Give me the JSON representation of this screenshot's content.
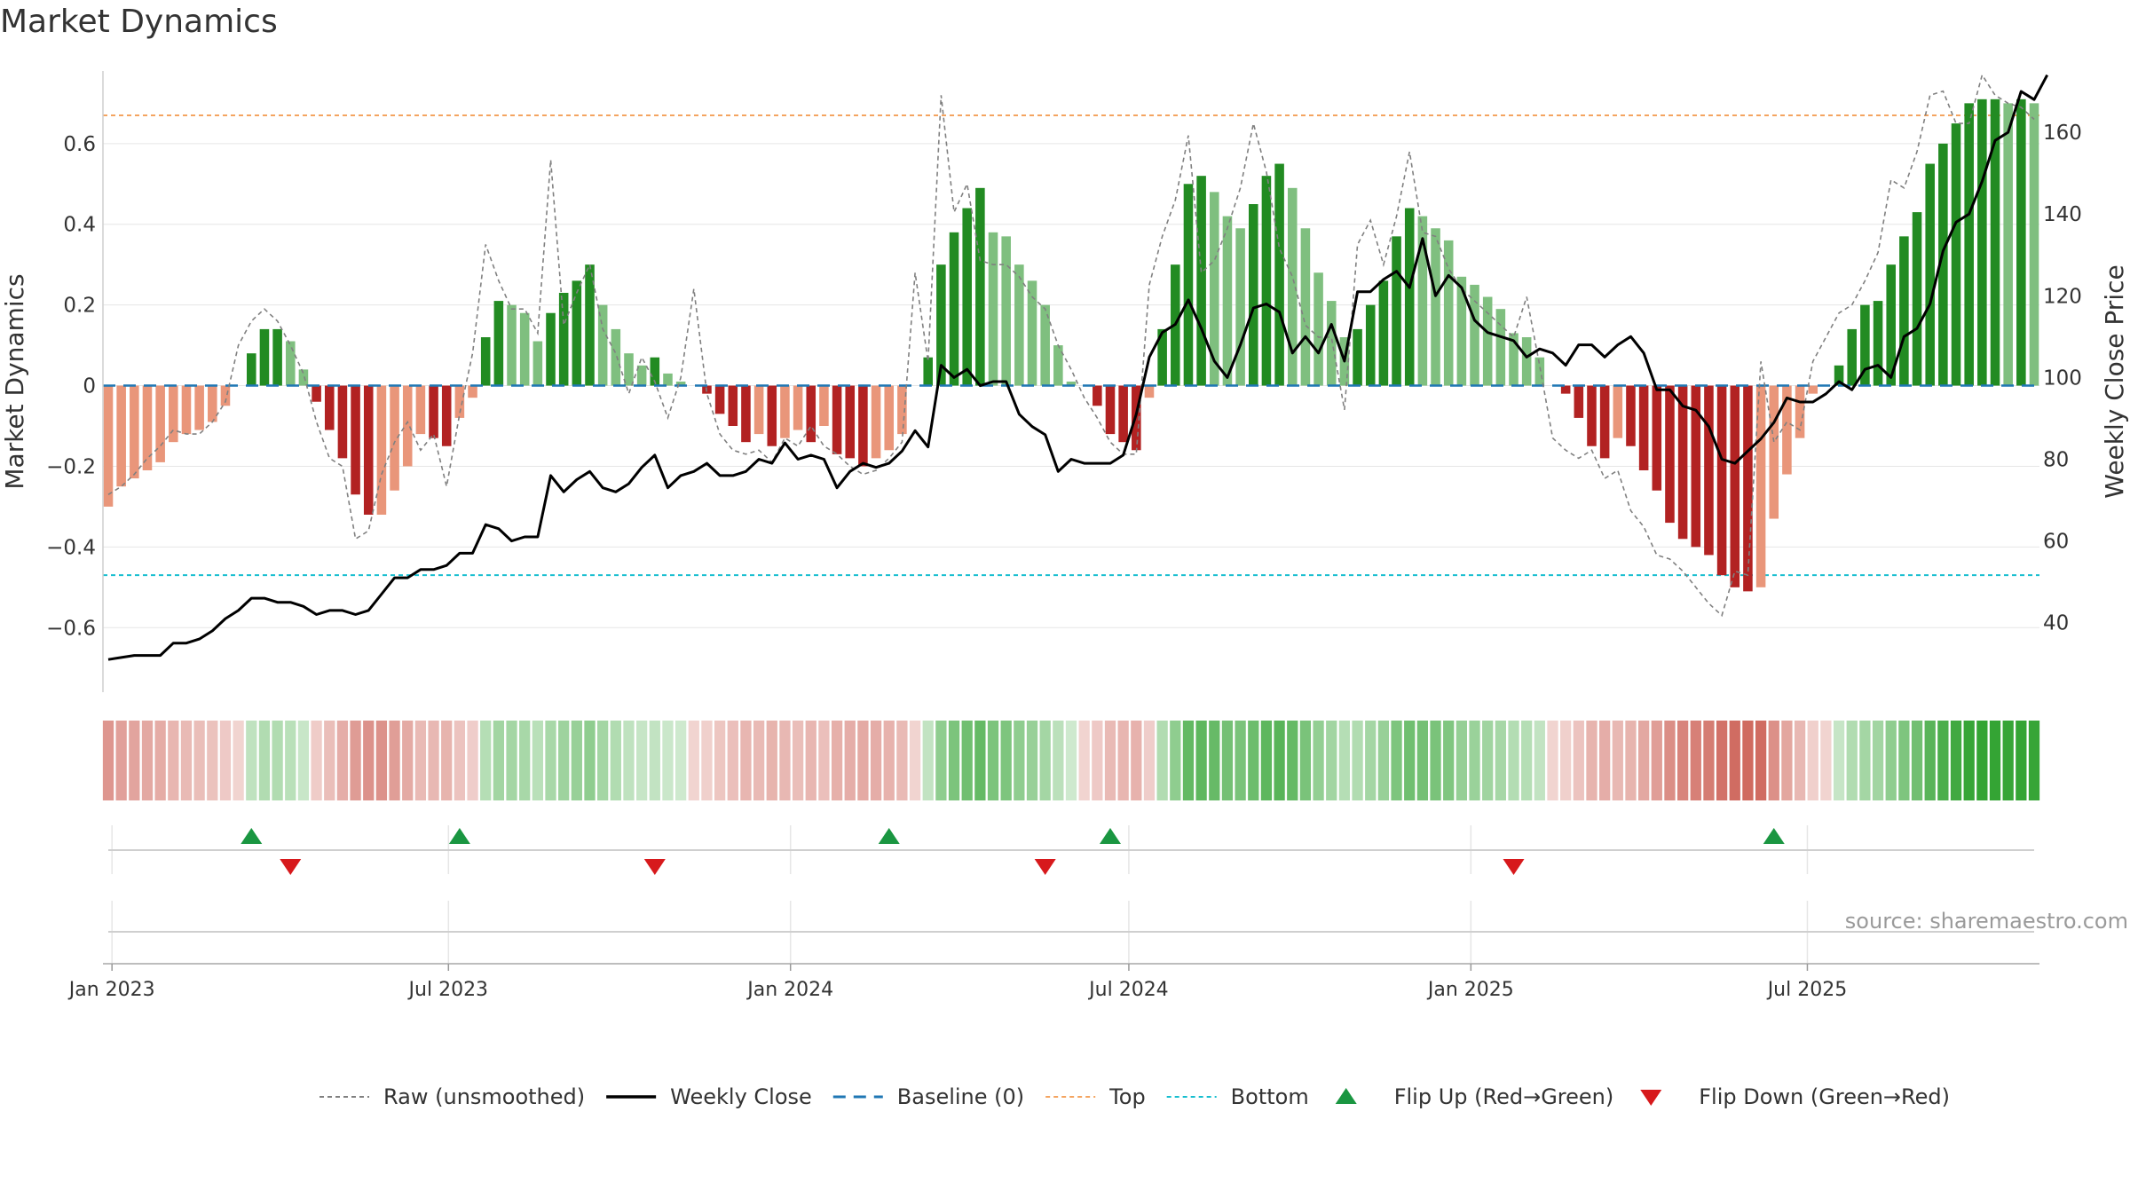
{
  "title": "Market Dynamics",
  "source": "source: sharemaestro.com",
  "colors": {
    "strong_green": "#228b22",
    "light_green": "#7fbf7f",
    "strong_red": "#b22222",
    "light_red": "#e9967a",
    "top_line": "#f4a460",
    "bottom_line": "#17becf",
    "baseline": "#1f77b4",
    "raw": "#808080",
    "close": "#000000",
    "flip_up": "#1a9641",
    "flip_down": "#d7191c"
  },
  "legend": [
    {
      "label": "Raw (unsmoothed)",
      "kind": "raw"
    },
    {
      "label": "Weekly Close",
      "kind": "close"
    },
    {
      "label": "Baseline (0)",
      "kind": "baseline"
    },
    {
      "label": "Top",
      "kind": "top"
    },
    {
      "label": "Bottom",
      "kind": "bottom"
    },
    {
      "label": "Flip Up (Red→Green)",
      "kind": "flip_up"
    },
    {
      "label": "Flip Down (Green→Red)",
      "kind": "flip_down"
    }
  ],
  "chart_data": {
    "type": "bar",
    "title": "Market Dynamics",
    "ylabel_left": "Market Dynamics",
    "ylabel_right": "Weekly Close Price",
    "ylim_left": [
      -0.76,
      0.78
    ],
    "ylim_right": [
      23,
      175
    ],
    "yticks_left": [
      "0.6",
      "0.4",
      "0.2",
      "0",
      "−0.2",
      "−0.4",
      "−0.6"
    ],
    "yticks_left_values": [
      0.6,
      0.4,
      0.2,
      0,
      -0.2,
      -0.4,
      -0.6
    ],
    "yticks_right": [
      "160",
      "140",
      "120",
      "100",
      "80",
      "60",
      "40"
    ],
    "yticks_right_values": [
      160,
      140,
      120,
      100,
      80,
      60,
      40
    ],
    "x_start": "2022-12-30",
    "x_step_days": 7,
    "xticks": [
      "Jan 2023",
      "Jul 2023",
      "Jan 2024",
      "Jul 2024",
      "Jan 2025",
      "Jul 2025"
    ],
    "xtick_dates": [
      "2023-01-01",
      "2023-07-01",
      "2024-01-01",
      "2024-07-01",
      "2025-01-01",
      "2025-07-01"
    ],
    "top_level": 0.67,
    "bottom_level": -0.47,
    "baseline": 0,
    "dynamics": [
      -0.3,
      -0.25,
      -0.23,
      -0.21,
      -0.19,
      -0.14,
      -0.12,
      -0.11,
      -0.09,
      -0.05,
      0.0,
      0.08,
      0.14,
      0.14,
      0.11,
      0.04,
      -0.04,
      -0.11,
      -0.18,
      -0.27,
      -0.32,
      -0.32,
      -0.26,
      -0.2,
      -0.12,
      -0.13,
      -0.15,
      -0.08,
      -0.03,
      0.12,
      0.21,
      0.2,
      0.18,
      0.11,
      0.18,
      0.23,
      0.26,
      0.3,
      0.2,
      0.14,
      0.08,
      0.05,
      0.07,
      0.03,
      0.01,
      0.0,
      -0.02,
      -0.07,
      -0.1,
      -0.14,
      -0.12,
      -0.15,
      -0.13,
      -0.11,
      -0.14,
      -0.1,
      -0.17,
      -0.18,
      -0.2,
      -0.18,
      -0.16,
      -0.12,
      0.0,
      0.07,
      0.3,
      0.38,
      0.44,
      0.49,
      0.38,
      0.37,
      0.3,
      0.26,
      0.2,
      0.1,
      0.01,
      0.0,
      -0.05,
      -0.12,
      -0.14,
      -0.16,
      -0.03,
      0.14,
      0.3,
      0.5,
      0.52,
      0.48,
      0.42,
      0.39,
      0.45,
      0.52,
      0.55,
      0.49,
      0.39,
      0.28,
      0.21,
      0.12,
      0.14,
      0.2,
      0.26,
      0.37,
      0.44,
      0.42,
      0.39,
      0.36,
      0.27,
      0.25,
      0.22,
      0.19,
      0.13,
      0.12,
      0.07,
      0.0,
      -0.02,
      -0.08,
      -0.15,
      -0.18,
      -0.13,
      -0.15,
      -0.21,
      -0.26,
      -0.34,
      -0.38,
      -0.4,
      -0.42,
      -0.47,
      -0.5,
      -0.51,
      -0.5,
      -0.33,
      -0.22,
      -0.13,
      -0.02,
      0.0,
      0.05,
      0.14,
      0.2,
      0.21,
      0.3,
      0.37,
      0.43,
      0.55,
      0.6,
      0.65,
      0.7,
      0.71,
      0.71,
      0.7,
      0.71,
      0.7
    ],
    "raw": [
      -0.27,
      -0.25,
      -0.22,
      -0.18,
      -0.15,
      -0.11,
      -0.12,
      -0.12,
      -0.09,
      -0.04,
      0.1,
      0.16,
      0.19,
      0.16,
      0.1,
      0.03,
      -0.09,
      -0.18,
      -0.2,
      -0.38,
      -0.36,
      -0.22,
      -0.14,
      -0.09,
      -0.16,
      -0.12,
      -0.25,
      -0.07,
      0.08,
      0.35,
      0.26,
      0.19,
      0.19,
      0.13,
      0.56,
      0.15,
      0.23,
      0.3,
      0.14,
      0.08,
      -0.02,
      0.07,
      0.01,
      -0.08,
      0.02,
      0.24,
      -0.02,
      -0.12,
      -0.16,
      -0.17,
      -0.16,
      -0.19,
      -0.13,
      -0.15,
      -0.1,
      -0.15,
      -0.17,
      -0.2,
      -0.22,
      -0.21,
      -0.18,
      -0.14,
      0.28,
      0.06,
      0.72,
      0.43,
      0.5,
      0.31,
      0.3,
      0.3,
      0.27,
      0.22,
      0.19,
      0.1,
      0.04,
      -0.03,
      -0.08,
      -0.14,
      -0.17,
      -0.17,
      0.25,
      0.37,
      0.46,
      0.62,
      0.28,
      0.31,
      0.39,
      0.49,
      0.65,
      0.53,
      0.34,
      0.27,
      0.15,
      0.12,
      0.12,
      -0.06,
      0.35,
      0.41,
      0.3,
      0.42,
      0.58,
      0.38,
      0.37,
      0.29,
      0.24,
      0.21,
      0.18,
      0.15,
      0.12,
      0.22,
      0.05,
      -0.13,
      -0.16,
      -0.18,
      -0.16,
      -0.23,
      -0.21,
      -0.31,
      -0.35,
      -0.42,
      -0.43,
      -0.46,
      -0.5,
      -0.54,
      -0.57,
      -0.46,
      -0.47,
      0.06,
      -0.14,
      -0.09,
      -0.11,
      0.06,
      0.12,
      0.18,
      0.2,
      0.26,
      0.33,
      0.51,
      0.49,
      0.58,
      0.72,
      0.73,
      0.65,
      0.65,
      0.77,
      0.72,
      0.7,
      0.69,
      0.66
    ],
    "close": [
      31,
      31.5,
      32,
      32,
      32,
      35,
      35,
      36,
      38,
      41,
      43,
      46,
      46,
      45,
      45,
      44,
      42,
      43,
      43,
      42,
      43,
      47,
      51,
      51,
      53,
      53,
      54,
      57,
      57,
      64,
      63,
      60,
      61,
      61,
      76,
      72,
      75,
      77,
      73,
      72,
      74,
      78,
      81,
      73,
      76,
      77,
      79,
      76,
      76,
      77,
      80,
      79,
      84,
      80,
      81,
      80,
      73,
      77,
      79,
      78,
      79,
      82,
      87,
      83,
      103,
      100,
      102,
      98,
      99,
      99,
      91,
      88,
      86,
      77,
      80,
      79,
      79,
      79,
      81,
      91,
      105,
      111,
      113,
      119,
      112,
      104,
      100,
      108,
      117,
      118,
      116,
      106,
      110,
      106,
      113,
      104,
      121,
      121,
      124,
      126,
      122,
      134,
      120,
      125,
      122,
      114,
      111,
      110,
      109,
      105,
      107,
      106,
      103,
      108,
      108,
      105,
      108,
      110,
      106,
      97,
      97,
      93,
      92,
      88,
      80,
      79,
      82,
      85,
      89,
      95,
      94,
      94,
      96,
      99,
      97,
      102,
      103,
      100,
      110,
      112,
      118,
      131,
      138,
      140,
      148,
      158,
      160,
      170,
      168,
      174
    ],
    "flip_up_dates": [
      "2023-03-17",
      "2023-07-07",
      "2024-02-23",
      "2024-06-21",
      "2025-06-13"
    ],
    "flip_down_dates": [
      "2023-04-07",
      "2023-10-20",
      "2024-05-17",
      "2025-01-24"
    ]
  }
}
